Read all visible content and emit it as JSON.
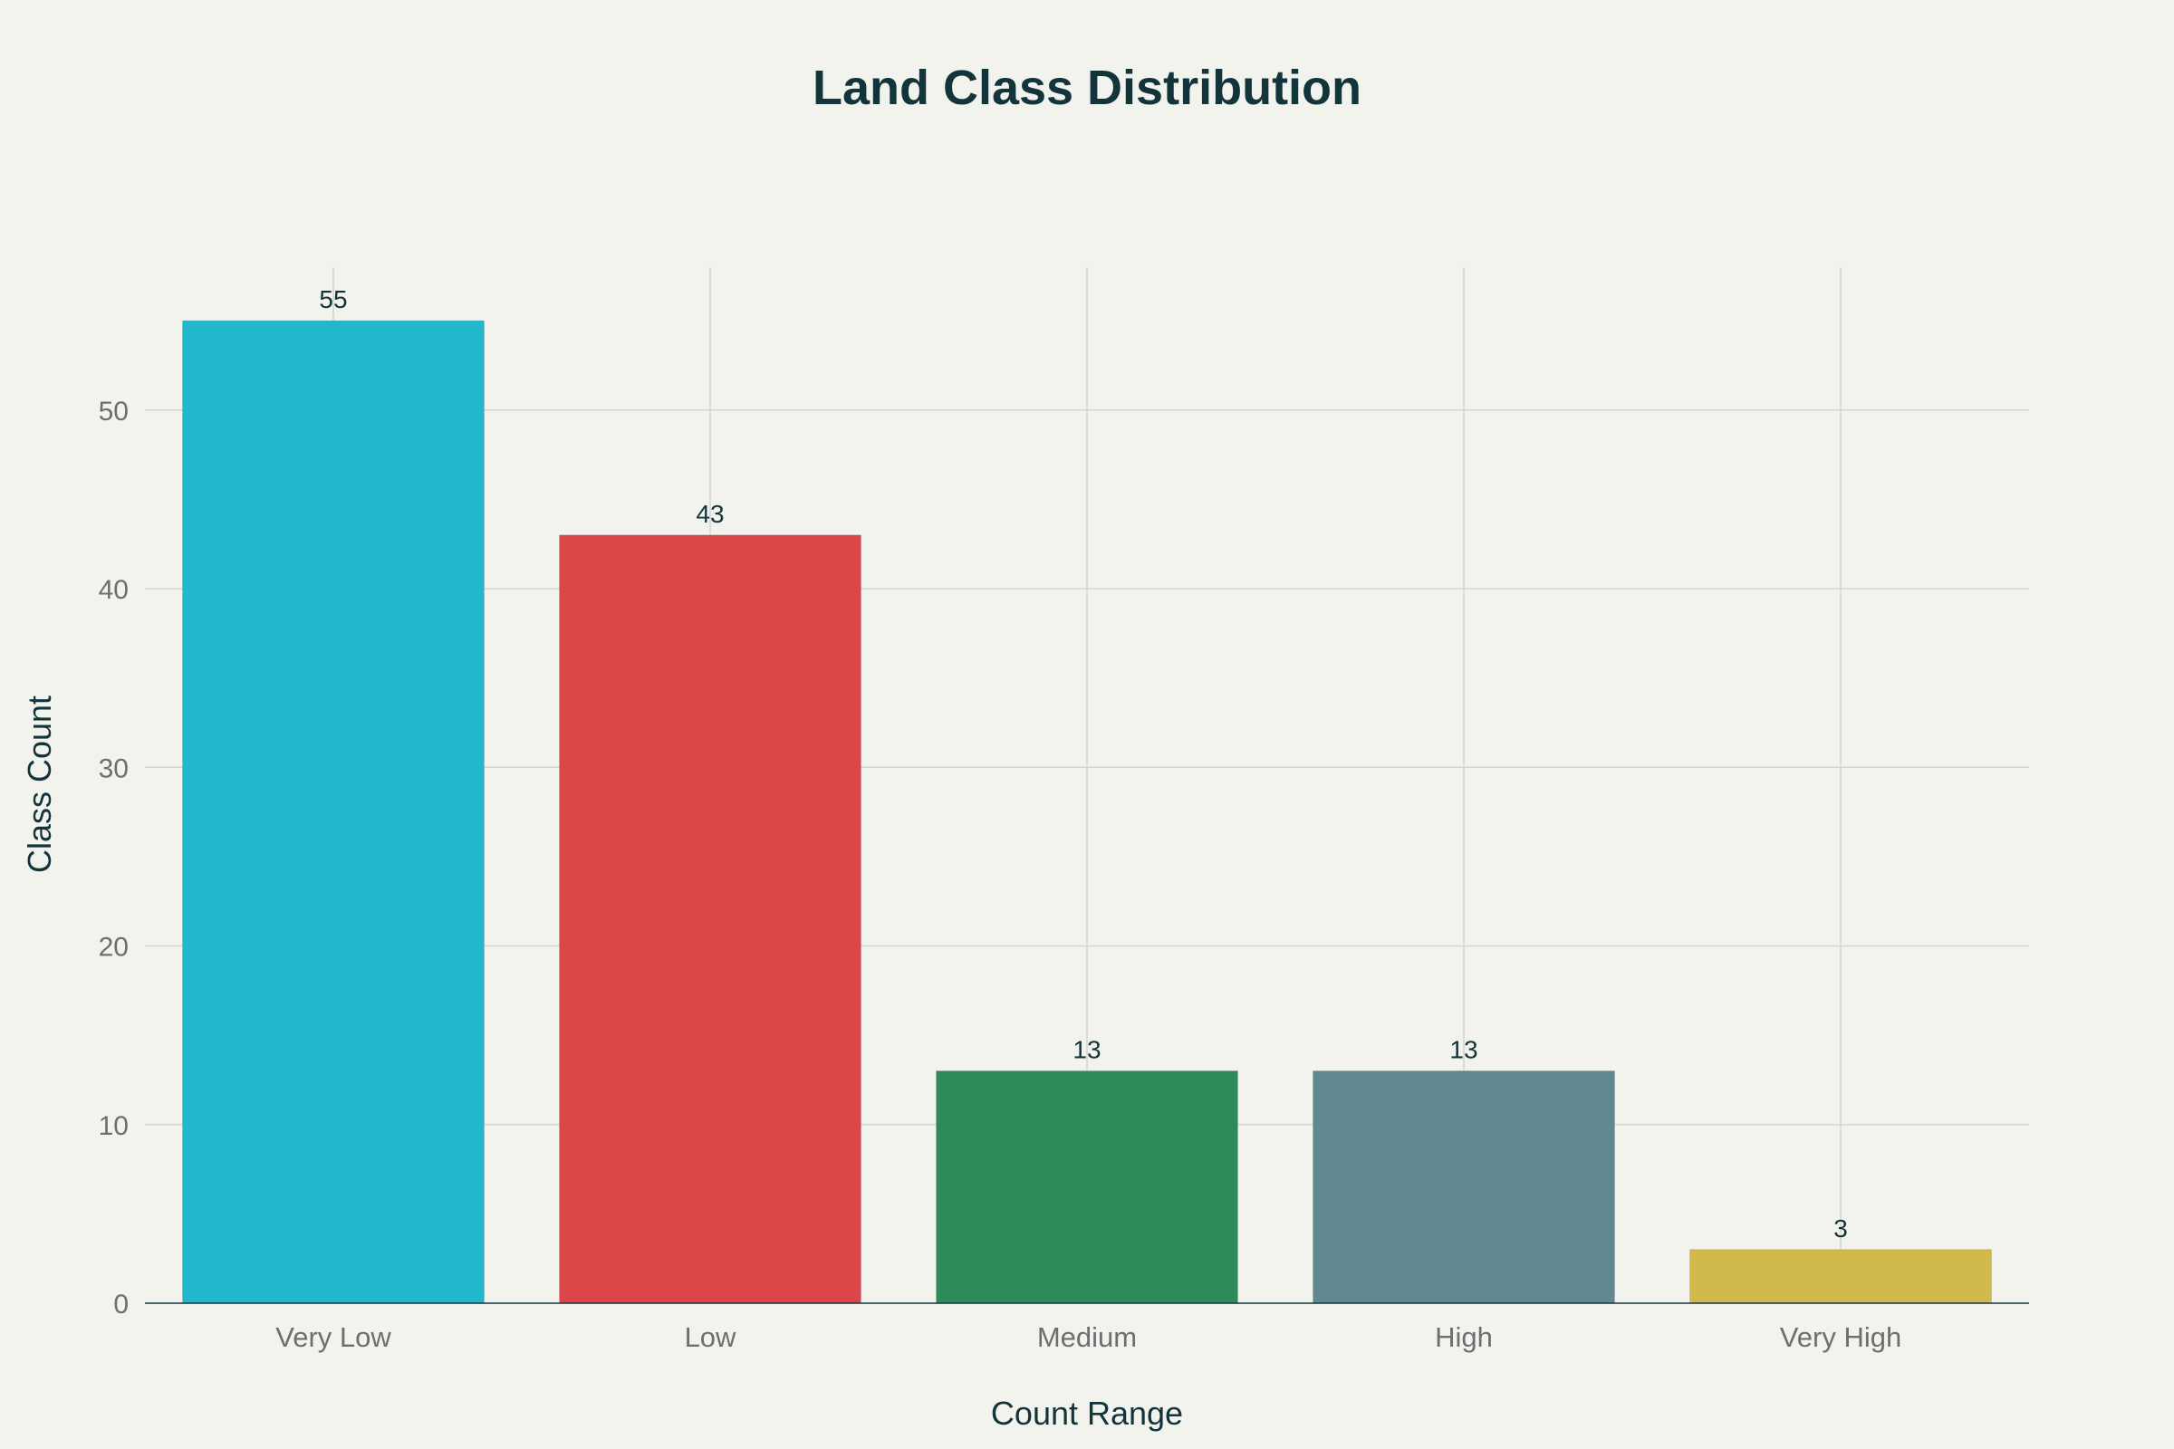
{
  "chart_data": {
    "type": "bar",
    "title": "Land Class Distribution",
    "xlabel": "Count Range",
    "ylabel": "Class Count",
    "categories": [
      "Very Low",
      "Low",
      "Medium",
      "High",
      "Very High"
    ],
    "values": [
      55,
      43,
      13,
      13,
      3
    ],
    "data_labels": [
      "55",
      "43",
      "13",
      "13",
      "3"
    ],
    "colors": [
      "#21b7cc",
      "#dc4648",
      "#2e8b59",
      "#5f8890",
      "#d2b94b"
    ],
    "ylim": [
      0,
      58
    ],
    "yticks": [
      0,
      10,
      20,
      30,
      40,
      50
    ],
    "grid": true,
    "legend": "none"
  }
}
